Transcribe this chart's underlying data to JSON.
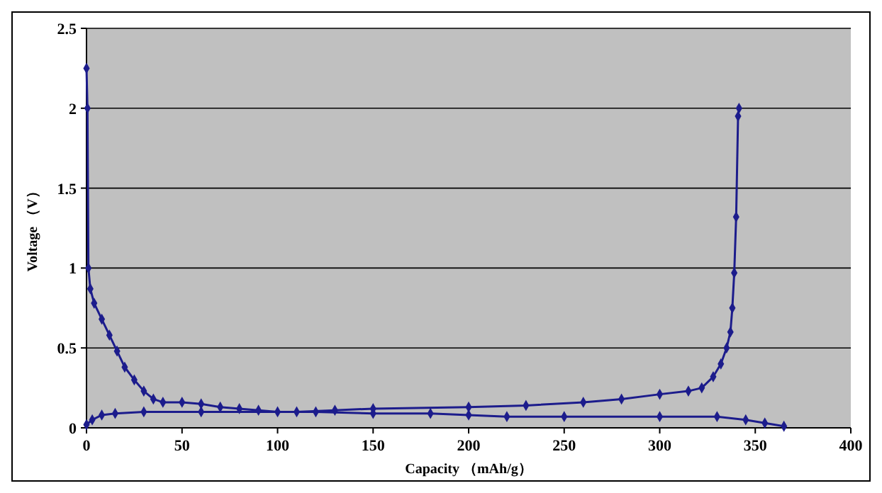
{
  "chart_data": {
    "type": "line",
    "xlabel": "Capacity （mAh/g）",
    "ylabel": "Voltage （V）",
    "xlim": [
      0,
      400
    ],
    "xticks": [
      0,
      50,
      100,
      150,
      200,
      250,
      300,
      350,
      400
    ],
    "ylim": [
      0,
      2.5
    ],
    "yticks": [
      0,
      0.5,
      1,
      1.5,
      2,
      2.5
    ],
    "grid": "y",
    "marker": "diamond",
    "line_style": "solid",
    "series": [
      {
        "color": "#1c1c8c",
        "x": [
          0,
          0.5,
          1,
          2,
          4,
          8,
          12,
          16,
          20,
          25,
          30,
          35,
          40,
          50,
          60,
          70,
          80,
          90,
          100,
          120,
          150,
          180,
          200,
          220,
          250,
          300,
          330,
          345,
          355,
          365
        ],
        "values": [
          2.25,
          2.0,
          1.0,
          0.87,
          0.78,
          0.68,
          0.58,
          0.48,
          0.38,
          0.3,
          0.23,
          0.18,
          0.16,
          0.16,
          0.15,
          0.13,
          0.12,
          0.11,
          0.1,
          0.1,
          0.09,
          0.09,
          0.08,
          0.07,
          0.07,
          0.07,
          0.07,
          0.05,
          0.03,
          0.01
        ]
      },
      {
        "color": "#1c1c8c",
        "x": [
          0,
          3,
          8,
          15,
          30,
          60,
          110,
          130,
          150,
          200,
          230,
          260,
          280,
          300,
          315,
          322,
          328,
          332,
          335,
          337,
          338,
          339,
          340,
          341,
          341.5
        ],
        "values": [
          0.02,
          0.05,
          0.08,
          0.09,
          0.1,
          0.1,
          0.1,
          0.11,
          0.12,
          0.13,
          0.14,
          0.16,
          0.18,
          0.21,
          0.23,
          0.25,
          0.32,
          0.4,
          0.5,
          0.6,
          0.75,
          0.97,
          1.32,
          1.95,
          2.0
        ]
      }
    ]
  }
}
